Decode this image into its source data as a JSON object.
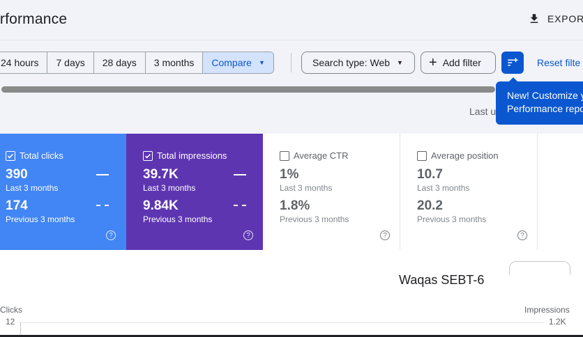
{
  "header": {
    "title": "erformance",
    "export_label": "EXPORT"
  },
  "filters": {
    "date_ranges": [
      "24 hours",
      "7 days",
      "28 days",
      "3 months"
    ],
    "compare_label": "Compare",
    "search_type_label": "Search type: Web",
    "add_filter_label": "Add filter",
    "reset_label": "Reset filte"
  },
  "tooltip": {
    "line1": "New! Customize y",
    "line2": "Performance repo"
  },
  "last_updated": "Last u",
  "metrics": {
    "clicks": {
      "label": "Total clicks",
      "value": "390",
      "period": "Last 3 months",
      "prev_value": "174",
      "prev_period": "Previous 3 months",
      "checked": true,
      "color": "#4285f4"
    },
    "impressions": {
      "label": "Total impressions",
      "value": "39.7K",
      "period": "Last 3 months",
      "prev_value": "9.84K",
      "prev_period": "Previous 3 months",
      "checked": true,
      "color": "#5e35b1"
    },
    "ctr": {
      "label": "Average CTR",
      "value": "1%",
      "period": "Last 3 months",
      "prev_value": "1.8%",
      "prev_period": "Previous 3 months",
      "checked": false
    },
    "position": {
      "label": "Average position",
      "value": "10.7",
      "period": "Last 3 months",
      "prev_value": "20.2",
      "prev_period": "Previous 3 months",
      "checked": false
    }
  },
  "chart": {
    "watermark": "Waqas SEBT-6",
    "left_axis_title": "Clicks",
    "left_axis_top_tick": "12",
    "right_axis_title": "Impressions",
    "right_axis_top_tick": "1.2K"
  },
  "icons": {
    "export": "download-icon",
    "filter": "filter-customize-icon",
    "help": "help-circle-icon"
  },
  "colors": {
    "accent": "#0b57d0",
    "selected_segment": "#d3e3fd"
  }
}
